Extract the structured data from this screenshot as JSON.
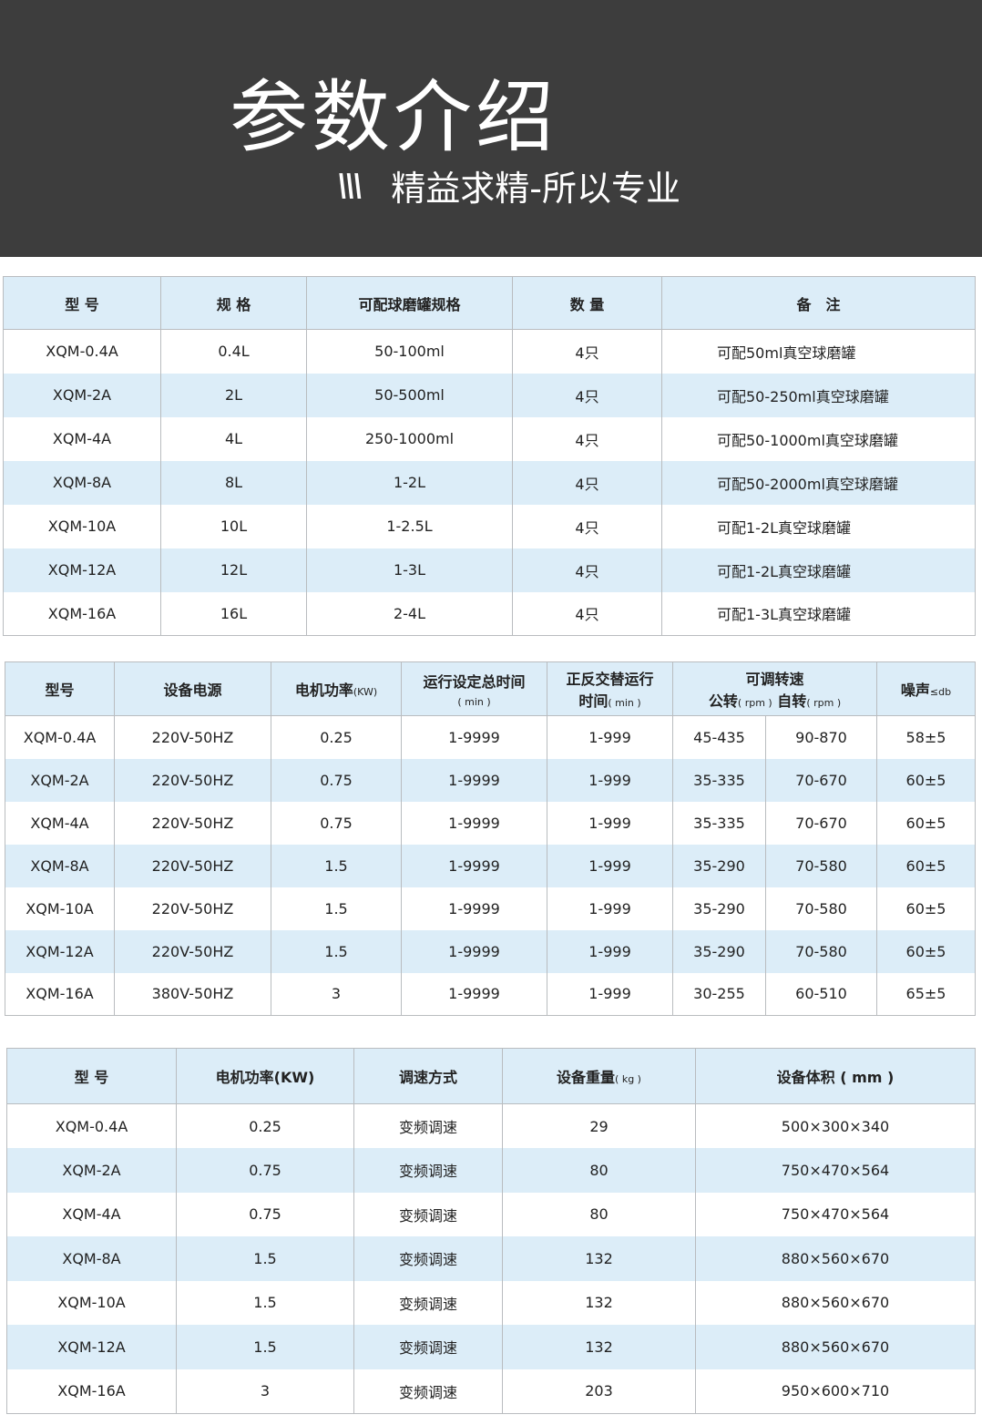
{
  "banner": {
    "title": "参数介绍",
    "subtitle": "精益求精-所以专业",
    "subtitle_icon": "triple-slash-icon"
  },
  "colors": {
    "banner_bg": "#3d3d3d",
    "header_bg": "#dcedf8",
    "alt_row_bg": "#dcedf8"
  },
  "table1": {
    "headers": [
      "型 号",
      "规 格",
      "可配球磨罐规格",
      "数 量",
      "备　注"
    ],
    "rows": [
      [
        "XQM-0.4A",
        "0.4L",
        "50-100ml",
        "4只",
        "可配50ml真空球磨罐"
      ],
      [
        "XQM-2A",
        "2L",
        "50-500ml",
        "4只",
        "可配50-250ml真空球磨罐"
      ],
      [
        "XQM-4A",
        "4L",
        "250-1000ml",
        "4只",
        "可配50-1000ml真空球磨罐"
      ],
      [
        "XQM-8A",
        "8L",
        "1-2L",
        "4只",
        "可配50-2000ml真空球磨罐"
      ],
      [
        "XQM-10A",
        "10L",
        "1-2.5L",
        "4只",
        "可配1-2L真空球磨罐"
      ],
      [
        "XQM-12A",
        "12L",
        "1-3L",
        "4只",
        "可配1-2L真空球磨罐"
      ],
      [
        "XQM-16A",
        "16L",
        "2-4L",
        "4只",
        "可配1-3L真空球磨罐"
      ]
    ]
  },
  "table2": {
    "headers": {
      "model": "型号",
      "power": "设备电源",
      "motor": "电机功率",
      "motor_unit": "(KW)",
      "runtime": "运行设定总时间",
      "runtime_unit": "( min )",
      "alt_line1": "正反交替运行",
      "alt_line2": "时间",
      "alt_unit": "( min )",
      "speed": "可调转速",
      "rev": "公转",
      "rev_unit": "( rpm )",
      "rot": "自转",
      "rot_unit": "( rpm )",
      "noise": "噪声",
      "noise_unit": "≤db"
    },
    "rows": [
      [
        "XQM-0.4A",
        "220V-50HZ",
        "0.25",
        "1-9999",
        "1-999",
        "45-435",
        "90-870",
        "58±5"
      ],
      [
        "XQM-2A",
        "220V-50HZ",
        "0.75",
        "1-9999",
        "1-999",
        "35-335",
        "70-670",
        "60±5"
      ],
      [
        "XQM-4A",
        "220V-50HZ",
        "0.75",
        "1-9999",
        "1-999",
        "35-335",
        "70-670",
        "60±5"
      ],
      [
        "XQM-8A",
        "220V-50HZ",
        "1.5",
        "1-9999",
        "1-999",
        "35-290",
        "70-580",
        "60±5"
      ],
      [
        "XQM-10A",
        "220V-50HZ",
        "1.5",
        "1-9999",
        "1-999",
        "35-290",
        "70-580",
        "60±5"
      ],
      [
        "XQM-12A",
        "220V-50HZ",
        "1.5",
        "1-9999",
        "1-999",
        "35-290",
        "70-580",
        "60±5"
      ],
      [
        "XQM-16A",
        "380V-50HZ",
        "3",
        "1-9999",
        "1-999",
        "30-255",
        "60-510",
        "65±5"
      ]
    ]
  },
  "table3": {
    "headers": {
      "model": "型 号",
      "motor": "电机功率(KW)",
      "speed_mode": "调速方式",
      "weight": "设备重量",
      "weight_unit": "( kg )",
      "volume": "设备体积 ( mm )"
    },
    "rows": [
      [
        "XQM-0.4A",
        "0.25",
        "变频调速",
        "29",
        "500×300×340"
      ],
      [
        "XQM-2A",
        "0.75",
        "变频调速",
        "80",
        "750×470×564"
      ],
      [
        "XQM-4A",
        "0.75",
        "变频调速",
        "80",
        "750×470×564"
      ],
      [
        "XQM-8A",
        "1.5",
        "变频调速",
        "132",
        "880×560×670"
      ],
      [
        "XQM-10A",
        "1.5",
        "变频调速",
        "132",
        "880×560×670"
      ],
      [
        "XQM-12A",
        "1.5",
        "变频调速",
        "132",
        "880×560×670"
      ],
      [
        "XQM-16A",
        "3",
        "变频调速",
        "203",
        "950×600×710"
      ]
    ]
  }
}
